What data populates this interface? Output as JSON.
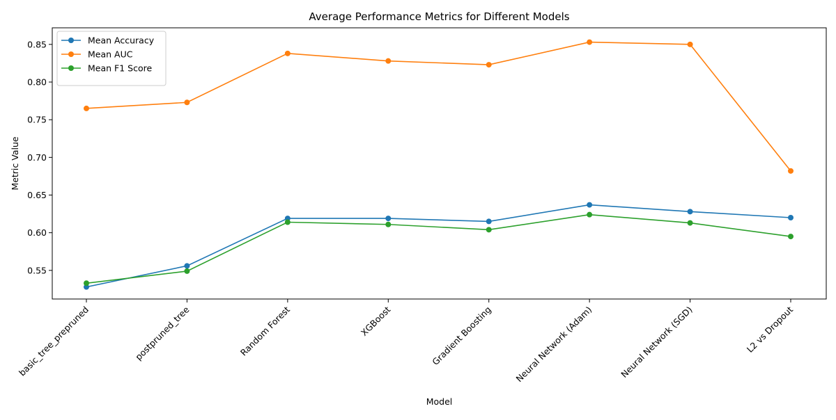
{
  "chart_data": {
    "type": "line",
    "title": "Average Performance Metrics for Different Models",
    "xlabel": "Model",
    "ylabel": "Metric Value",
    "categories": [
      "basic_tree_prepruned",
      "postpruned_tree",
      "Random Forest",
      "XGBoost",
      "Gradient Boosting",
      "Neural Network (Adam)",
      "Neural Network (SGD)",
      "L2 vs Dropout"
    ],
    "ylim": [
      0.512,
      0.872
    ],
    "yticks": [
      0.55,
      0.6,
      0.65,
      0.7,
      0.75,
      0.8,
      0.85
    ],
    "ytick_labels": [
      "0.55",
      "0.60",
      "0.65",
      "0.70",
      "0.75",
      "0.80",
      "0.85"
    ],
    "grid": false,
    "legend_position": "top-left",
    "marker": "circle",
    "series": [
      {
        "name": "Mean Accuracy",
        "color": "#1f77b4",
        "values": [
          0.528,
          0.556,
          0.619,
          0.619,
          0.615,
          0.637,
          0.628,
          0.62
        ]
      },
      {
        "name": "Mean AUC",
        "color": "#ff7f0e",
        "values": [
          0.765,
          0.773,
          0.838,
          0.828,
          0.823,
          0.853,
          0.85,
          0.682
        ]
      },
      {
        "name": "Mean F1 Score",
        "color": "#2ca02c",
        "values": [
          0.533,
          0.549,
          0.614,
          0.611,
          0.604,
          0.624,
          0.613,
          0.595
        ]
      }
    ]
  }
}
